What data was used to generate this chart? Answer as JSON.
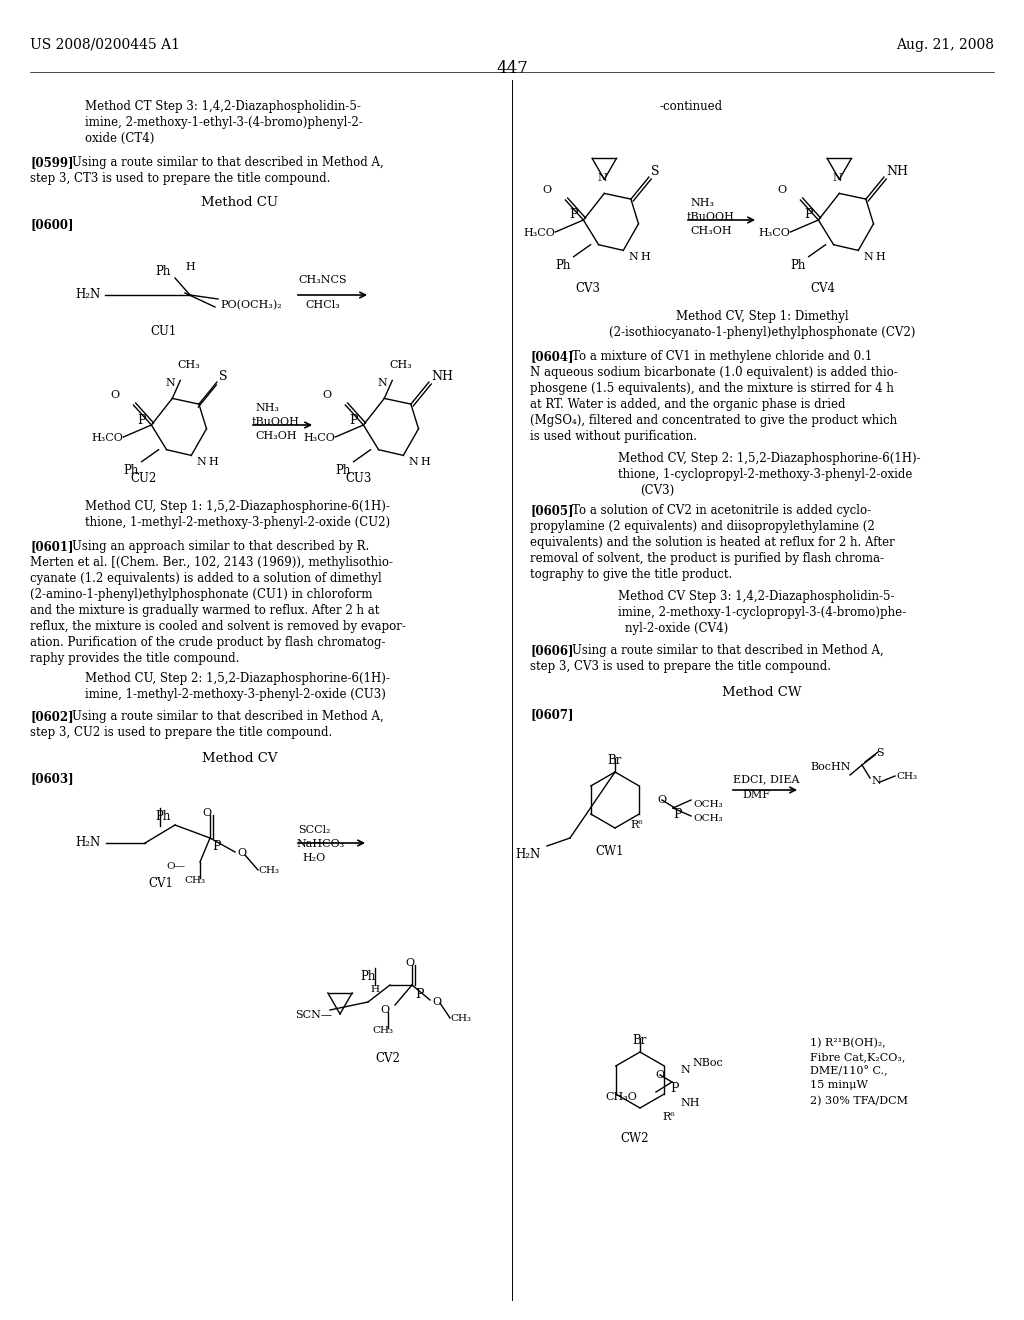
{
  "page_number": "447",
  "header_left": "US 2008/0200445 A1",
  "header_right": "Aug. 21, 2008",
  "background_color": "#ffffff"
}
